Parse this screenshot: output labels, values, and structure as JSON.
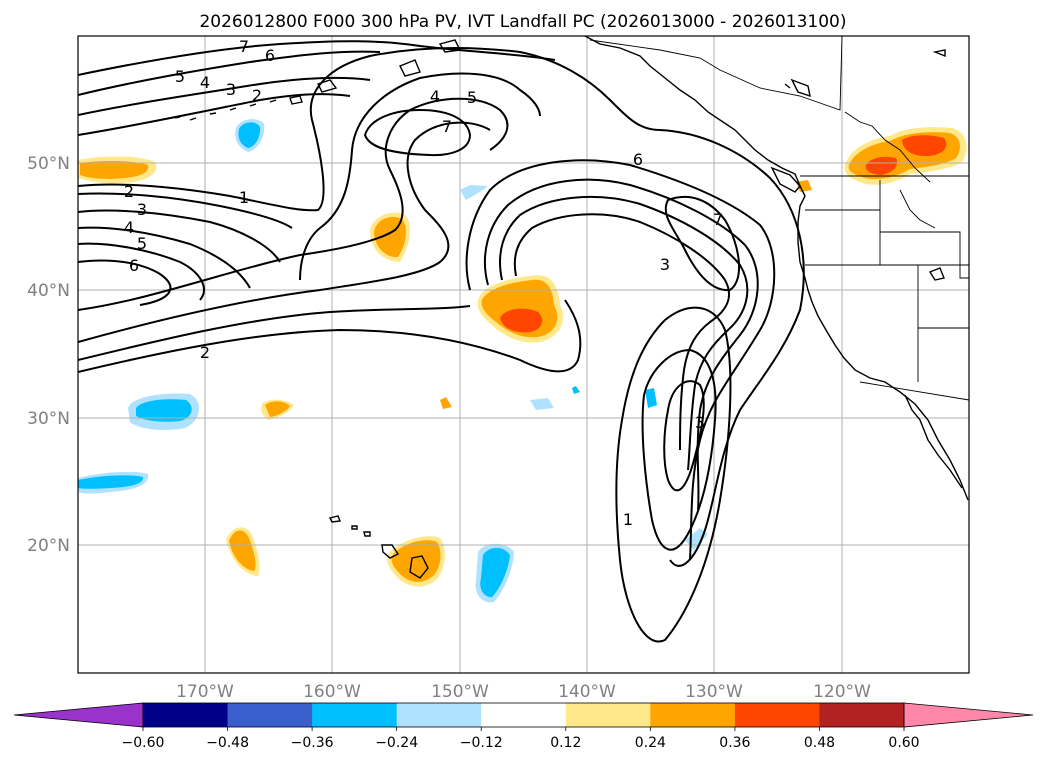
{
  "title": "2026012800 F000 300 hPa PV, IVT Landfall PC (2026013000 - 2026013100)",
  "lon_labels": [
    "170°W",
    "160°W",
    "150°W",
    "140°W",
    "130°W",
    "120°W"
  ],
  "lat_labels": [
    "50°N",
    "40°N",
    "30°N",
    "20°N"
  ],
  "colorbar": {
    "tick_labels": [
      "−0.60",
      "−0.48",
      "−0.36",
      "−0.24",
      "−0.12",
      "0.12",
      "0.24",
      "0.36",
      "0.48",
      "0.60"
    ],
    "colors": [
      "#9933cc",
      "#00008b",
      "#3a5fcd",
      "#00bfff",
      "#b0e2ff",
      "#ffffff",
      "#ffe88a",
      "#ffa500",
      "#ff4500",
      "#b22222",
      "#ff88aa"
    ]
  },
  "pv_contour_labels": [
    "7",
    "6",
    "5",
    "4",
    "3",
    "2",
    "1",
    "2",
    "3",
    "4",
    "5",
    "6",
    "4",
    "5",
    "7",
    "6",
    "7",
    "3",
    "2",
    "3",
    "1"
  ],
  "chart_data": {
    "type": "contour-map",
    "title": "2026012800 F000 300 hPa PV, IVT Landfall PC (2026013000 - 2026013100)",
    "projection": "lat-lon",
    "xlim_lon": [
      -180,
      -110
    ],
    "ylim_lat": [
      10,
      60
    ],
    "x_ticks": [
      -170,
      -160,
      -150,
      -140,
      -130,
      -120
    ],
    "y_ticks": [
      50,
      40,
      30,
      20
    ],
    "contour_field": "300 hPa PV",
    "contour_levels": [
      1,
      2,
      3,
      4,
      5,
      6,
      7
    ],
    "shaded_field": "IVT Landfall PC",
    "shading_levels": [
      -0.6,
      -0.48,
      -0.36,
      -0.24,
      -0.12,
      0.12,
      0.24,
      0.36,
      0.48,
      0.6
    ]
  }
}
